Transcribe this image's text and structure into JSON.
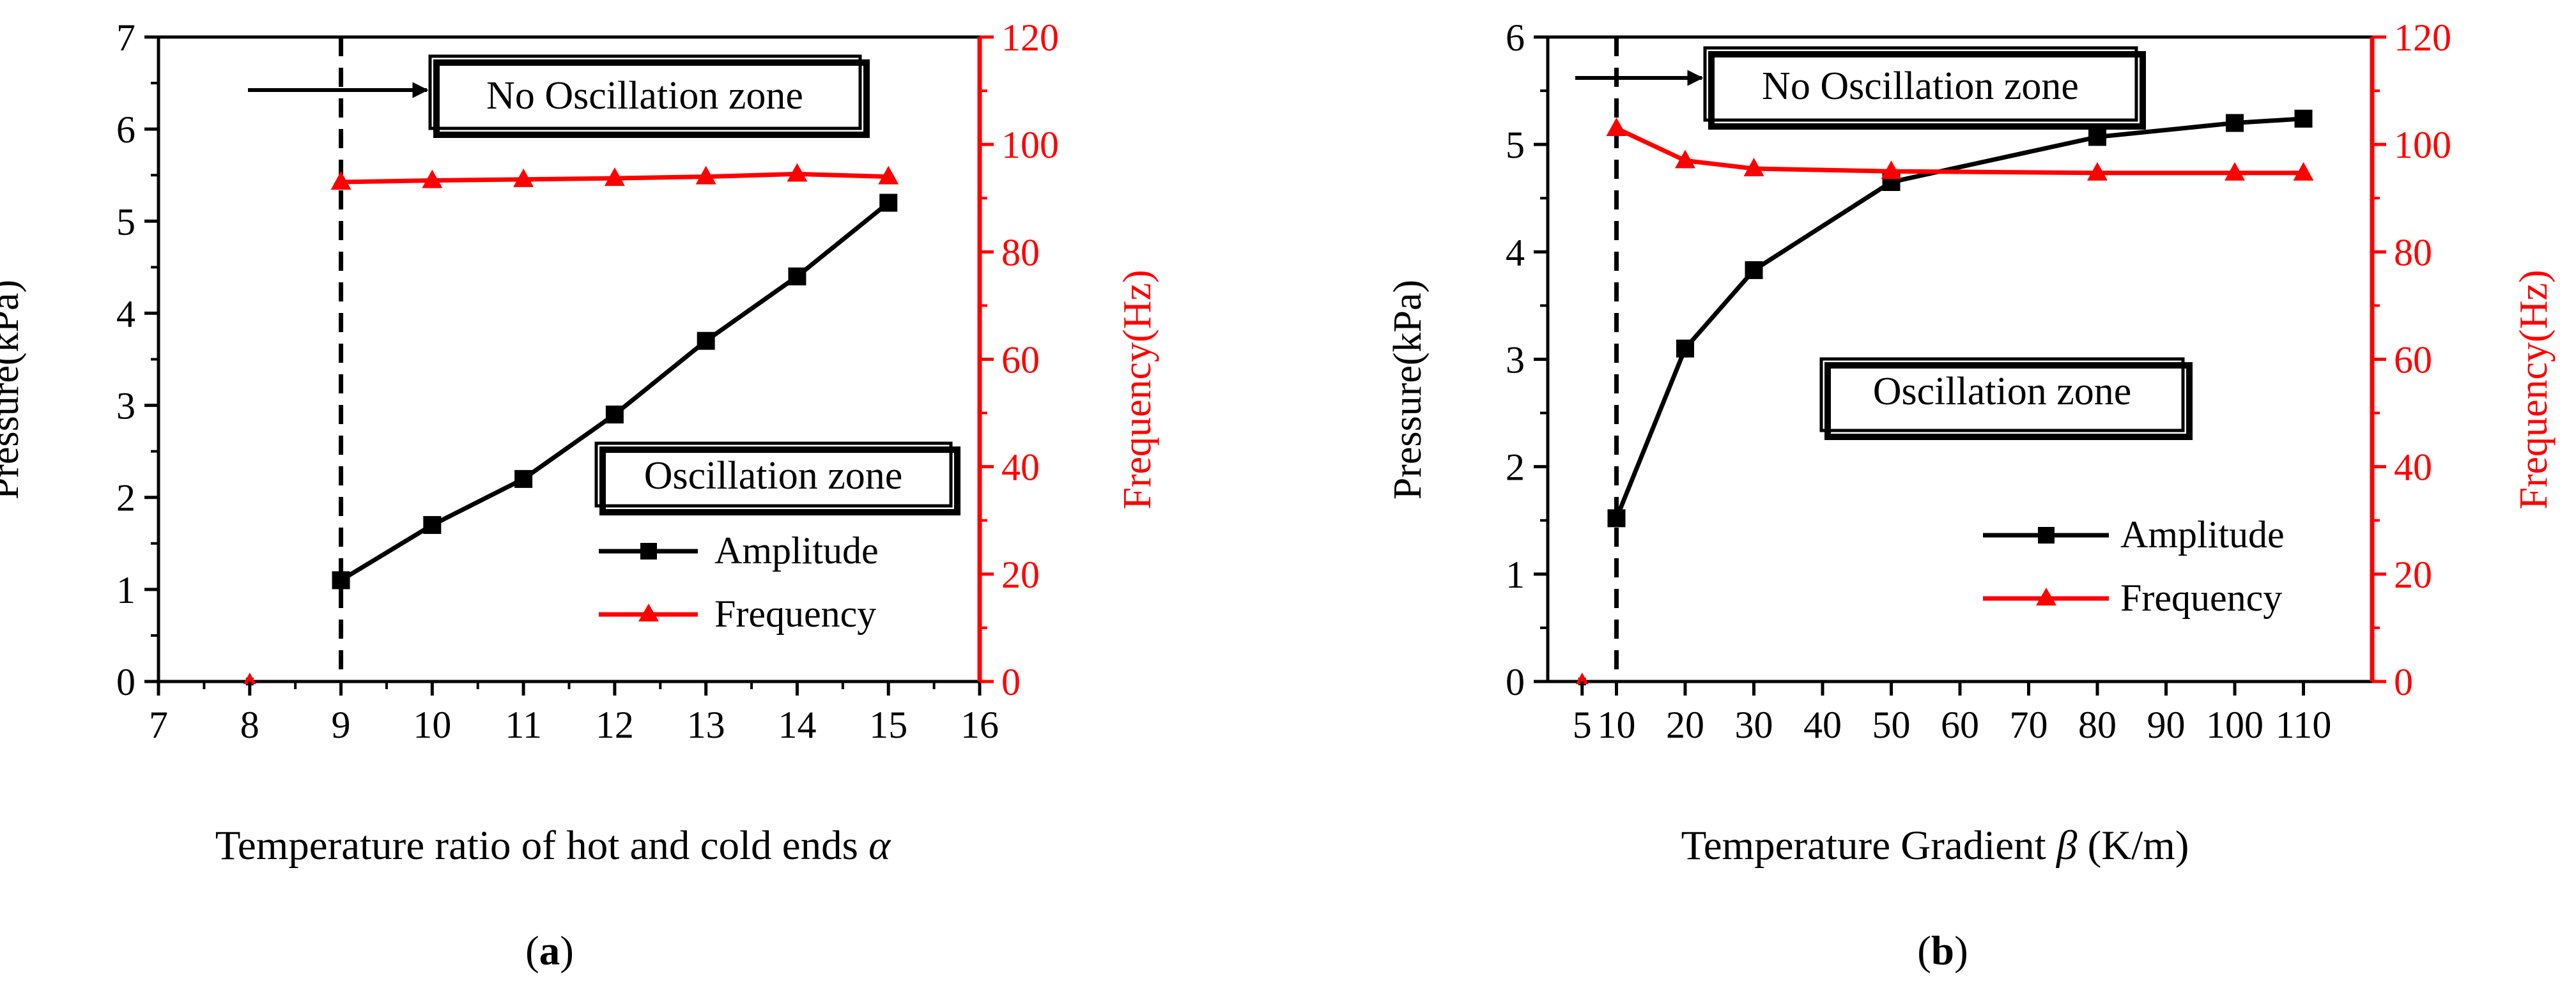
{
  "chart_data": [
    {
      "panel_label": "(a)",
      "type": "line",
      "xlabel": "Temperature ratio of hot and cold ends",
      "xlabel_symbol": "α",
      "ylabel_left": "Pressure(kPa)",
      "ylabel_right": "Frequency(Hz)",
      "xlim": [
        7,
        16
      ],
      "ylim_left": [
        0,
        7
      ],
      "ylim_right": [
        0,
        120
      ],
      "x_ticks": [
        "7",
        "8",
        "9",
        "10",
        "11",
        "12",
        "13",
        "14",
        "15",
        "16"
      ],
      "y_left_ticks": [
        "0",
        "1",
        "2",
        "3",
        "4",
        "5",
        "6",
        "7"
      ],
      "y_right_ticks": [
        "0",
        "20",
        "40",
        "60",
        "80",
        "100",
        "120"
      ],
      "onset_line_x": 9,
      "series": [
        {
          "name": "Amplitude",
          "axis": "left",
          "color": "#000000",
          "marker": "square",
          "x": [
            9,
            10,
            11,
            12,
            13,
            14,
            15
          ],
          "values": [
            1.1,
            1.7,
            2.2,
            2.9,
            3.7,
            4.4,
            5.2
          ]
        },
        {
          "name": "Frequency",
          "axis": "right",
          "color": "#ff0000",
          "marker": "triangle",
          "x": [
            9,
            10,
            11,
            12,
            13,
            14,
            15
          ],
          "values": [
            93,
            93.3,
            93.5,
            93.7,
            94,
            94.5,
            94
          ]
        }
      ],
      "extra_points": [
        {
          "x": 8,
          "value": 0,
          "axis": "left",
          "color": "#000000",
          "marker": "square"
        },
        {
          "x": 8,
          "value": 0,
          "axis": "right",
          "color": "#ff0000",
          "marker": "triangle"
        }
      ],
      "annotations": {
        "no_oscillation": "No Oscillation zone",
        "oscillation": "Oscillation zone"
      },
      "legend": [
        "Amplitude",
        "Frequency"
      ]
    },
    {
      "panel_label": "(b)",
      "type": "line",
      "xlabel_prefix": "Temperature Gradient",
      "xlabel_symbol": "β",
      "xlabel_unit": "(K/m)",
      "ylabel_left": "Pressure(kPa)",
      "ylabel_right": "Frequency(Hz)",
      "xlim": [
        0,
        120
      ],
      "ylim_left": [
        0,
        6
      ],
      "ylim_right": [
        0,
        120
      ],
      "x_ticks": [
        "5",
        "10",
        "20",
        "30",
        "40",
        "50",
        "60",
        "70",
        "80",
        "90",
        "100",
        "110"
      ],
      "x_tick_values": [
        5,
        10,
        20,
        30,
        40,
        50,
        60,
        70,
        80,
        90,
        100,
        110
      ],
      "y_left_ticks": [
        "0",
        "1",
        "2",
        "3",
        "4",
        "5",
        "6"
      ],
      "y_right_ticks": [
        "0",
        "20",
        "40",
        "60",
        "80",
        "100",
        "120"
      ],
      "onset_line_x": 10,
      "series": [
        {
          "name": "Amplitude",
          "axis": "left",
          "color": "#000000",
          "marker": "square",
          "x": [
            10,
            20,
            30,
            50,
            80,
            100,
            110
          ],
          "values": [
            1.52,
            3.1,
            3.83,
            4.65,
            5.07,
            5.2,
            5.24
          ]
        },
        {
          "name": "Frequency",
          "axis": "right",
          "color": "#ff0000",
          "marker": "triangle",
          "x": [
            10,
            20,
            30,
            50,
            80,
            100,
            110
          ],
          "values": [
            103,
            97,
            95.5,
            95,
            94.7,
            94.7,
            94.7
          ]
        }
      ],
      "extra_points": [
        {
          "x": 5,
          "value": 0,
          "axis": "left",
          "color": "#000000",
          "marker": "square"
        },
        {
          "x": 5,
          "value": 0,
          "axis": "right",
          "color": "#ff0000",
          "marker": "triangle"
        }
      ],
      "annotations": {
        "no_oscillation": "No Oscillation zone",
        "oscillation": "Oscillation zone"
      },
      "legend": [
        "Amplitude",
        "Frequency"
      ]
    }
  ]
}
